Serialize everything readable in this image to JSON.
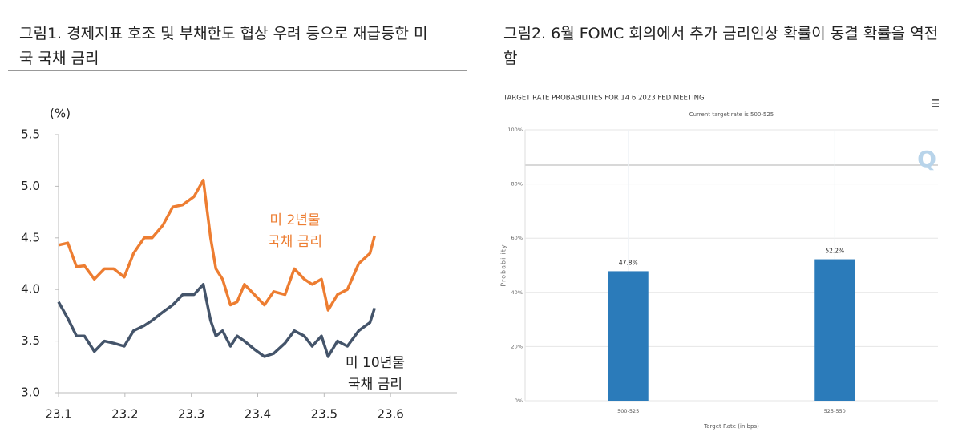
{
  "chart_data": [
    {
      "type": "line",
      "title": "그림1.   경제지표 호조 및 부채한도 협상 우려 등으로 재급등한 미국 국채 금리",
      "y_unit": "(%)",
      "x": [
        23.1,
        23.114,
        23.127,
        23.139,
        23.154,
        23.169,
        23.183,
        23.199,
        23.213,
        23.229,
        23.241,
        23.257,
        23.272,
        23.287,
        23.304,
        23.318,
        23.329,
        23.337,
        23.347,
        23.359,
        23.369,
        23.38,
        23.395,
        23.41,
        23.424,
        23.441,
        23.455,
        23.47,
        23.482,
        23.496,
        23.506,
        23.52,
        23.535,
        23.552,
        23.569,
        23.576
      ],
      "series": [
        {
          "name": "미 2년물\n국채 금리",
          "color": "#ed7d31",
          "values": [
            4.43,
            4.45,
            4.22,
            4.23,
            4.1,
            4.2,
            4.2,
            4.12,
            4.35,
            4.5,
            4.5,
            4.62,
            4.8,
            4.82,
            4.9,
            5.06,
            4.5,
            4.2,
            4.1,
            3.85,
            3.88,
            4.05,
            3.95,
            3.85,
            3.98,
            3.95,
            4.2,
            4.1,
            4.05,
            4.1,
            3.8,
            3.95,
            4.0,
            4.25,
            4.35,
            4.52
          ]
        },
        {
          "name": "미 10년물\n국채 금리",
          "color": "#44546a",
          "values": [
            3.88,
            3.72,
            3.55,
            3.55,
            3.4,
            3.5,
            3.48,
            3.45,
            3.6,
            3.65,
            3.7,
            3.78,
            3.85,
            3.95,
            3.95,
            4.05,
            3.7,
            3.55,
            3.6,
            3.45,
            3.55,
            3.5,
            3.42,
            3.35,
            3.38,
            3.48,
            3.6,
            3.55,
            3.45,
            3.55,
            3.35,
            3.5,
            3.45,
            3.6,
            3.68,
            3.82
          ]
        }
      ],
      "xlim": [
        23.1,
        23.7
      ],
      "xticks": [
        23.1,
        23.2,
        23.3,
        23.4,
        23.5,
        23.6
      ],
      "ylim": [
        3.0,
        5.5
      ],
      "yticks": [
        {
          "value": 3,
          "label": "3.0"
        },
        3.5,
        {
          "value": 4,
          "label": "4.0"
        },
        4.5,
        {
          "value": 5,
          "label": "5.0"
        },
        5.5
      ]
    },
    {
      "type": "bar",
      "figure_title": "그림2.   6월 FOMC 회의에서 추가 금리인상 확률이 동결 확률을 역전함",
      "title": "TARGET RATE PROBABILITIES FOR 14 6 2023 FED MEETING",
      "subtitle": "Current target rate is 500-525",
      "x_label": "Target Rate (in bps)",
      "y_label": "Probability",
      "categories": [
        "500-525",
        "525-550"
      ],
      "values": [
        47.8,
        52.2
      ],
      "value_labels": [
        "47.8%",
        "52.2%"
      ],
      "color": "#2b7bba",
      "ylim": [
        0,
        100
      ],
      "yticks": [
        {
          "value": 0,
          "label": "0%"
        },
        {
          "value": 20,
          "label": "20%"
        },
        {
          "value": 40,
          "label": "40%"
        },
        {
          "value": 60,
          "label": "60%"
        },
        {
          "value": 80,
          "label": "80%"
        },
        {
          "value": 100,
          "label": "100%"
        }
      ],
      "grid": true
    }
  ]
}
